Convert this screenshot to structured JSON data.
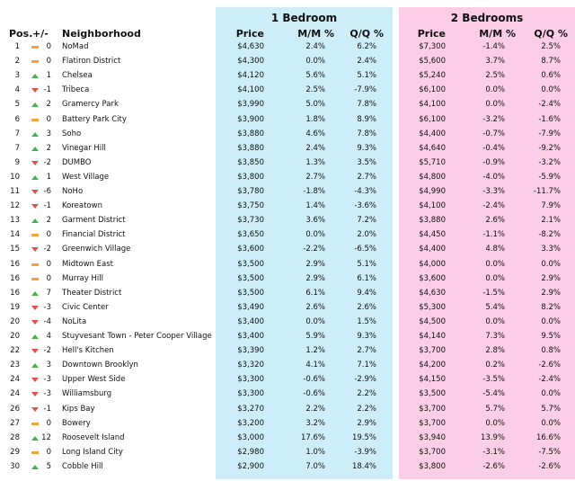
{
  "groups": {
    "one_bedroom": "1 Bedroom",
    "two_bedrooms": "2 Bedrooms"
  },
  "headers": {
    "pos": "Pos.",
    "change": "+/-",
    "neighborhood": "Neighborhood",
    "price": "Price",
    "mm": "M/M %",
    "qq": "Q/Q %"
  },
  "colors": {
    "one_bed_panel": "#cdeef8",
    "two_bed_panel": "#fbcde6",
    "up": "#4caf50",
    "down": "#e0524a",
    "flat": "#f2a23a"
  },
  "rows": [
    {
      "pos": "1",
      "trend": "flat",
      "change": "0",
      "name": "NoMad",
      "p1": "$4,630",
      "mm1": "2.4%",
      "qq1": "6.2%",
      "p2": "$7,300",
      "mm2": "-1.4%",
      "qq2": "2.5%"
    },
    {
      "pos": "2",
      "trend": "flat",
      "change": "0",
      "name": "Flatiron District",
      "p1": "$4,300",
      "mm1": "0.0%",
      "qq1": "2.4%",
      "p2": "$5,600",
      "mm2": "3.7%",
      "qq2": "8.7%"
    },
    {
      "pos": "3",
      "trend": "up",
      "change": "1",
      "name": "Chelsea",
      "p1": "$4,120",
      "mm1": "5.6%",
      "qq1": "5.1%",
      "p2": "$5,240",
      "mm2": "2.5%",
      "qq2": "0.6%"
    },
    {
      "pos": "4",
      "trend": "down",
      "change": "-1",
      "name": "Tribeca",
      "p1": "$4,100",
      "mm1": "2.5%",
      "qq1": "-7.9%",
      "p2": "$6,100",
      "mm2": "0.0%",
      "qq2": "0.0%"
    },
    {
      "pos": "5",
      "trend": "up",
      "change": "2",
      "name": "Gramercy Park",
      "p1": "$3,990",
      "mm1": "5.0%",
      "qq1": "7.8%",
      "p2": "$4,100",
      "mm2": "0.0%",
      "qq2": "-2.4%"
    },
    {
      "pos": "6",
      "trend": "flat",
      "change": "0",
      "name": "Battery Park City",
      "p1": "$3,900",
      "mm1": "1.8%",
      "qq1": "8.9%",
      "p2": "$6,100",
      "mm2": "-3.2%",
      "qq2": "-1.6%"
    },
    {
      "pos": "7",
      "trend": "up",
      "change": "3",
      "name": "Soho",
      "p1": "$3,880",
      "mm1": "4.6%",
      "qq1": "7.8%",
      "p2": "$4,400",
      "mm2": "-0.7%",
      "qq2": "-7.9%"
    },
    {
      "pos": "7",
      "trend": "up",
      "change": "2",
      "name": "Vinegar Hill",
      "p1": "$3,880",
      "mm1": "2.4%",
      "qq1": "9.3%",
      "p2": "$4,640",
      "mm2": "-0.4%",
      "qq2": "-9.2%"
    },
    {
      "pos": "9",
      "trend": "down",
      "change": "-2",
      "name": "DUMBO",
      "p1": "$3,850",
      "mm1": "1.3%",
      "qq1": "3.5%",
      "p2": "$5,710",
      "mm2": "-0.9%",
      "qq2": "-3.2%"
    },
    {
      "pos": "10",
      "trend": "up",
      "change": "1",
      "name": "West Village",
      "p1": "$3,800",
      "mm1": "2.7%",
      "qq1": "2.7%",
      "p2": "$4,800",
      "mm2": "-4.0%",
      "qq2": "-5.9%"
    },
    {
      "pos": "11",
      "trend": "down",
      "change": "-6",
      "name": "NoHo",
      "p1": "$3,780",
      "mm1": "-1.8%",
      "qq1": "-4.3%",
      "p2": "$4,990",
      "mm2": "-3.3%",
      "qq2": "-11.7%"
    },
    {
      "pos": "12",
      "trend": "down",
      "change": "-1",
      "name": "Koreatown",
      "p1": "$3,750",
      "mm1": "1.4%",
      "qq1": "-3.6%",
      "p2": "$4,100",
      "mm2": "-2.4%",
      "qq2": "7.9%"
    },
    {
      "pos": "13",
      "trend": "up",
      "change": "2",
      "name": "Garment District",
      "p1": "$3,730",
      "mm1": "3.6%",
      "qq1": "7.2%",
      "p2": "$3,880",
      "mm2": "2.6%",
      "qq2": "2.1%"
    },
    {
      "pos": "14",
      "trend": "flat",
      "change": "0",
      "name": "Financial District",
      "p1": "$3,650",
      "mm1": "0.0%",
      "qq1": "2.0%",
      "p2": "$4,450",
      "mm2": "-1.1%",
      "qq2": "-8.2%"
    },
    {
      "pos": "15",
      "trend": "down",
      "change": "-2",
      "name": "Greenwich Village",
      "p1": "$3,600",
      "mm1": "-2.2%",
      "qq1": "-6.5%",
      "p2": "$4,400",
      "mm2": "4.8%",
      "qq2": "3.3%"
    },
    {
      "pos": "16",
      "trend": "flat",
      "change": "0",
      "name": "Midtown East",
      "p1": "$3,500",
      "mm1": "2.9%",
      "qq1": "5.1%",
      "p2": "$4,000",
      "mm2": "0.0%",
      "qq2": "0.0%"
    },
    {
      "pos": "16",
      "trend": "flat",
      "change": "0",
      "name": "Murray Hill",
      "p1": "$3,500",
      "mm1": "2.9%",
      "qq1": "6.1%",
      "p2": "$3,600",
      "mm2": "0.0%",
      "qq2": "2.9%"
    },
    {
      "pos": "16",
      "trend": "up",
      "change": "7",
      "name": "Theater District",
      "p1": "$3,500",
      "mm1": "6.1%",
      "qq1": "9.4%",
      "p2": "$4,630",
      "mm2": "-1.5%",
      "qq2": "2.9%"
    },
    {
      "pos": "19",
      "trend": "down",
      "change": "-3",
      "name": "Civic Center",
      "p1": "$3,490",
      "mm1": "2.6%",
      "qq1": "2.6%",
      "p2": "$5,300",
      "mm2": "5.4%",
      "qq2": "8.2%"
    },
    {
      "pos": "20",
      "trend": "down",
      "change": "-4",
      "name": "NoLita",
      "p1": "$3,400",
      "mm1": "0.0%",
      "qq1": "1.5%",
      "p2": "$4,500",
      "mm2": "0.0%",
      "qq2": "0.0%"
    },
    {
      "pos": "20",
      "trend": "up",
      "change": "4",
      "name": "Stuyvesant Town - Peter Cooper Village",
      "p1": "$3,400",
      "mm1": "5.9%",
      "qq1": "9.3%",
      "p2": "$4,140",
      "mm2": "7.3%",
      "qq2": "9.5%"
    },
    {
      "pos": "22",
      "trend": "down",
      "change": "-2",
      "name": "Hell's Kitchen",
      "p1": "$3,390",
      "mm1": "1.2%",
      "qq1": "2.7%",
      "p2": "$3,700",
      "mm2": "2.8%",
      "qq2": "0.8%"
    },
    {
      "pos": "23",
      "trend": "up",
      "change": "3",
      "name": "Downtown Brooklyn",
      "p1": "$3,320",
      "mm1": "4.1%",
      "qq1": "7.1%",
      "p2": "$4,200",
      "mm2": "0.2%",
      "qq2": "-2.6%"
    },
    {
      "pos": "24",
      "trend": "down",
      "change": "-3",
      "name": "Upper West Side",
      "p1": "$3,300",
      "mm1": "-0.6%",
      "qq1": "-2.9%",
      "p2": "$4,150",
      "mm2": "-3.5%",
      "qq2": "-2.4%"
    },
    {
      "pos": "24",
      "trend": "down",
      "change": "-3",
      "name": "Williamsburg",
      "p1": "$3,300",
      "mm1": "-0.6%",
      "qq1": "2.2%",
      "p2": "$3,500",
      "mm2": "-5.4%",
      "qq2": "0.0%"
    },
    {
      "pos": "26",
      "trend": "down",
      "change": "-1",
      "name": "Kips Bay",
      "p1": "$3,270",
      "mm1": "2.2%",
      "qq1": "2.2%",
      "p2": "$3,700",
      "mm2": "5.7%",
      "qq2": "5.7%"
    },
    {
      "pos": "27",
      "trend": "flat",
      "change": "0",
      "name": "Bowery",
      "p1": "$3,200",
      "mm1": "3.2%",
      "qq1": "2.9%",
      "p2": "$3,700",
      "mm2": "0.0%",
      "qq2": "0.0%"
    },
    {
      "pos": "28",
      "trend": "up",
      "change": "12",
      "name": "Roosevelt Island",
      "p1": "$3,000",
      "mm1": "17.6%",
      "qq1": "19.5%",
      "p2": "$3,940",
      "mm2": "13.9%",
      "qq2": "16.6%"
    },
    {
      "pos": "29",
      "trend": "flat",
      "change": "0",
      "name": "Long Island City",
      "p1": "$2,980",
      "mm1": "1.0%",
      "qq1": "-3.9%",
      "p2": "$3,700",
      "mm2": "-3.1%",
      "qq2": "-7.5%"
    },
    {
      "pos": "30",
      "trend": "up",
      "change": "5",
      "name": "Cobble Hill",
      "p1": "$2,900",
      "mm1": "7.0%",
      "qq1": "18.4%",
      "p2": "$3,800",
      "mm2": "-2.6%",
      "qq2": "-2.6%"
    }
  ]
}
